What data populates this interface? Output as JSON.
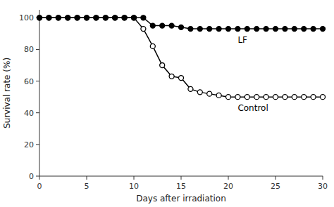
{
  "chart_data": {
    "type": "line",
    "xlabel": "Days after irradiation",
    "ylabel": "Survival rate (%)",
    "x": [
      0,
      1,
      2,
      3,
      4,
      5,
      6,
      7,
      8,
      9,
      10,
      11,
      12,
      13,
      14,
      15,
      16,
      17,
      18,
      19,
      20,
      21,
      22,
      23,
      24,
      25,
      26,
      27,
      28,
      29,
      30
    ],
    "series": [
      {
        "name": "Control",
        "color": "#000000",
        "marker": "open-circle",
        "values": [
          100,
          100,
          100,
          100,
          100,
          100,
          100,
          100,
          100,
          100,
          100,
          93,
          82,
          70,
          63,
          62,
          55,
          53,
          52,
          51,
          50,
          50,
          50,
          50,
          50,
          50,
          50,
          50,
          50,
          50,
          50
        ]
      },
      {
        "name": "LF",
        "color": "#000000",
        "marker": "circle",
        "values": [
          100,
          100,
          100,
          100,
          100,
          100,
          100,
          100,
          100,
          100,
          100,
          100,
          95,
          95,
          95,
          94,
          93,
          93,
          93,
          93,
          93,
          93,
          93,
          93,
          93,
          93,
          93,
          93,
          93,
          93,
          93
        ]
      }
    ],
    "xlim": [
      0,
      30
    ],
    "ylim": [
      0,
      105
    ],
    "xticks": [
      0,
      5,
      10,
      15,
      20,
      25,
      30
    ],
    "yticks": [
      0,
      20,
      40,
      60,
      80,
      100
    ],
    "grid": false
  }
}
